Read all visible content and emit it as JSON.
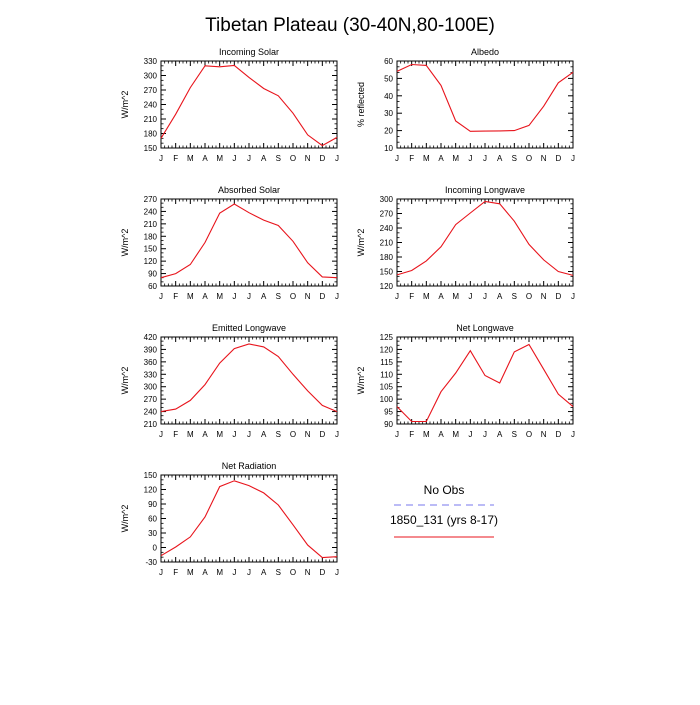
{
  "page": {
    "title": "Tibetan Plateau (30-40N,80-100E)"
  },
  "chart_data": [
    {
      "type": "line",
      "title": "Incoming Solar",
      "ylabel": "W/m^2",
      "x": [
        "J",
        "F",
        "M",
        "A",
        "M",
        "J",
        "J",
        "A",
        "S",
        "O",
        "N",
        "D",
        "J"
      ],
      "yticks": [
        150,
        180,
        210,
        240,
        270,
        300,
        330
      ],
      "ylim": [
        150,
        330
      ],
      "series": [
        {
          "color": "#e8141c",
          "values": [
            170,
            220,
            275,
            320,
            318,
            321,
            296,
            273,
            258,
            222,
            177,
            155,
            172
          ]
        }
      ]
    },
    {
      "type": "line",
      "title": "Albedo",
      "ylabel": "% reflected",
      "x": [
        "J",
        "F",
        "M",
        "A",
        "M",
        "J",
        "J",
        "A",
        "S",
        "O",
        "N",
        "D",
        "J"
      ],
      "yticks": [
        10,
        20,
        30,
        40,
        50,
        60
      ],
      "ylim": [
        10,
        60
      ],
      "series": [
        {
          "color": "#e8141c",
          "values": [
            54,
            58,
            57.5,
            46,
            25.5,
            19.6,
            19.7,
            19.8,
            20,
            23,
            34,
            47.5,
            53.5
          ]
        }
      ]
    },
    {
      "type": "line",
      "title": "Absorbed Solar",
      "ylabel": "W/m^2",
      "x": [
        "J",
        "F",
        "M",
        "A",
        "M",
        "J",
        "J",
        "A",
        "S",
        "O",
        "N",
        "D",
        "J"
      ],
      "yticks": [
        60,
        90,
        120,
        150,
        180,
        210,
        240,
        270
      ],
      "ylim": [
        60,
        270
      ],
      "series": [
        {
          "color": "#e8141c",
          "values": [
            80,
            90,
            112,
            165,
            236,
            258,
            237,
            219,
            206,
            168,
            116,
            82,
            80
          ]
        }
      ]
    },
    {
      "type": "line",
      "title": "Incoming Longwave",
      "ylabel": "W/m^2",
      "x": [
        "J",
        "F",
        "M",
        "A",
        "M",
        "J",
        "J",
        "A",
        "S",
        "O",
        "N",
        "D",
        "J"
      ],
      "yticks": [
        120,
        150,
        180,
        210,
        240,
        270,
        300
      ],
      "ylim": [
        120,
        300
      ],
      "series": [
        {
          "color": "#e8141c",
          "values": [
            143,
            152,
            172,
            201,
            247,
            271,
            295,
            290,
            254,
            206,
            174,
            150,
            142
          ]
        }
      ]
    },
    {
      "type": "line",
      "title": "Emitted Longwave",
      "ylabel": "W/m^2",
      "x": [
        "J",
        "F",
        "M",
        "A",
        "M",
        "J",
        "J",
        "A",
        "S",
        "O",
        "N",
        "D",
        "J"
      ],
      "yticks": [
        210,
        240,
        270,
        300,
        330,
        360,
        390,
        420
      ],
      "ylim": [
        210,
        420
      ],
      "series": [
        {
          "color": "#e8141c",
          "values": [
            240,
            246,
            267,
            305,
            357,
            392,
            403,
            396,
            373,
            330,
            290,
            255,
            240
          ]
        }
      ]
    },
    {
      "type": "line",
      "title": "Net Longwave",
      "ylabel": "W/m^2",
      "x": [
        "J",
        "F",
        "M",
        "A",
        "M",
        "J",
        "J",
        "A",
        "S",
        "O",
        "N",
        "D",
        "J"
      ],
      "yticks": [
        90,
        95,
        100,
        105,
        110,
        115,
        120,
        125
      ],
      "ylim": [
        90,
        125
      ],
      "series": [
        {
          "color": "#e8141c",
          "values": [
            97,
            91,
            91,
            103,
            110.5,
            119.5,
            109.5,
            106.5,
            119,
            122,
            112,
            102,
            97
          ]
        }
      ]
    },
    {
      "type": "line",
      "title": "Net Radiation",
      "ylabel": "W/m^2",
      "x": [
        "J",
        "F",
        "M",
        "A",
        "M",
        "J",
        "J",
        "A",
        "S",
        "O",
        "N",
        "D",
        "J"
      ],
      "yticks": [
        -30,
        0,
        30,
        60,
        90,
        120,
        150
      ],
      "ylim": [
        -30,
        150
      ],
      "series": [
        {
          "color": "#e8141c",
          "values": [
            -17,
            1,
            22,
            63,
            126,
            138,
            128,
            113,
            88,
            47,
            5,
            -21,
            -19
          ]
        }
      ]
    }
  ],
  "legend": {
    "items": [
      {
        "label": "No Obs",
        "color": "#7777ee",
        "style": "dashed"
      },
      {
        "label": "1850_131 (yrs 8-17)",
        "color": "#e8141c",
        "style": "solid"
      }
    ]
  }
}
